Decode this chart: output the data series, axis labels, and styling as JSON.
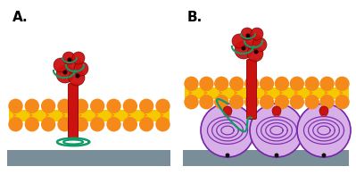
{
  "fig_width": 3.99,
  "fig_height": 1.96,
  "dpi": 100,
  "bg_color": "#ffffff",
  "label_A": "A.",
  "label_B": "B.",
  "label_fontsize": 11,
  "label_fontweight": "bold",
  "substrate_color": "#7a8e9a",
  "orange": "#f5891a",
  "yellow": "#f5c800",
  "red": "#cc1111",
  "green": "#119966",
  "vesicle_fill": "#d8b0e8",
  "vesicle_edge": "#7722aa",
  "dark_dot": "#111111"
}
